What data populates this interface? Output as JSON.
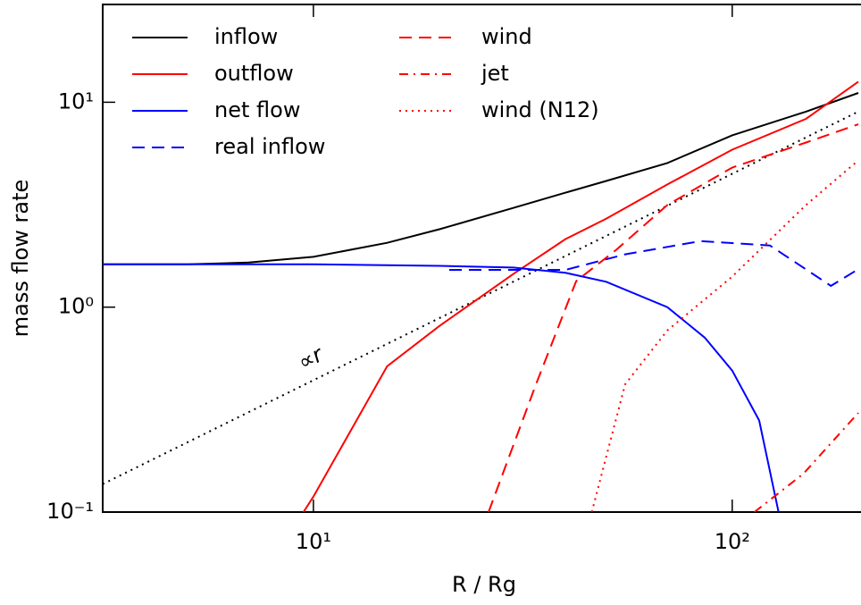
{
  "chart_data": {
    "type": "line",
    "log_x": true,
    "log_y": true,
    "xlabel": "R / Rg",
    "ylabel": "mass flow rate",
    "xlim": [
      3.14,
      203
    ],
    "ylim": [
      0.1,
      30
    ],
    "xticks": [
      {
        "value": 10,
        "label": "10¹"
      },
      {
        "value": 100,
        "label": "10²"
      }
    ],
    "yticks": [
      {
        "value": 0.1,
        "label": "10⁻¹"
      },
      {
        "value": 1,
        "label": "10⁰"
      },
      {
        "value": 10,
        "label": "10¹"
      }
    ],
    "legend": "upper left",
    "series": [
      {
        "name": "inflow",
        "color": "#000000",
        "dash": "solid",
        "x": [
          3.14,
          5,
          7,
          10,
          15,
          20,
          30,
          40,
          50,
          70,
          100,
          150,
          200
        ],
        "values": [
          1.62,
          1.62,
          1.65,
          1.76,
          2.06,
          2.4,
          3.05,
          3.62,
          4.13,
          5.05,
          6.9,
          9.0,
          11.1
        ]
      },
      {
        "name": "outflow",
        "color": "#ff0000",
        "dash": "solid",
        "x": [
          9.47,
          10,
          15,
          20,
          30,
          40,
          50,
          70,
          100,
          150,
          200
        ],
        "values": [
          0.1,
          0.119,
          0.515,
          0.81,
          1.45,
          2.15,
          2.7,
          3.97,
          5.87,
          8.3,
          12.6
        ]
      },
      {
        "name": "net flow",
        "color": "#0000ff",
        "dash": "solid",
        "x": [
          3.14,
          10,
          20,
          30,
          40,
          50,
          70,
          86,
          100,
          116,
          129
        ],
        "values": [
          1.62,
          1.62,
          1.59,
          1.56,
          1.47,
          1.33,
          1.0,
          0.71,
          0.49,
          0.28,
          0.1
        ]
      },
      {
        "name": "real inflow",
        "color": "#0000ff",
        "dash": "dashed",
        "x": [
          21.1,
          40,
          55.5,
          84,
          123,
          172,
          203
        ],
        "values": [
          1.52,
          1.52,
          1.81,
          2.1,
          2.0,
          1.27,
          1.56
        ]
      },
      {
        "name": "wind",
        "color": "#ff0000",
        "dash": "dashed",
        "x": [
          26.2,
          34,
          42.4,
          52.8,
          70,
          100,
          150,
          200
        ],
        "values": [
          0.1,
          0.42,
          1.34,
          1.9,
          3.15,
          4.8,
          6.36,
          7.8
        ]
      },
      {
        "name": "jet",
        "color": "#ff0000",
        "dash": "dashdot",
        "x": [
          113,
          148,
          200
        ],
        "values": [
          0.1,
          0.154,
          0.305
        ]
      },
      {
        "name": "wind (N12)",
        "color": "#ff0000",
        "dash": "dotted",
        "x": [
          46.2,
          55.5,
          70,
          100,
          150,
          200
        ],
        "values": [
          0.1,
          0.42,
          0.77,
          1.41,
          3.15,
          5.2
        ]
      }
    ],
    "reference_line": {
      "label": "∝r",
      "color": "#000000",
      "dash": "dotted",
      "x": [
        3.14,
        200
      ],
      "values": [
        0.137,
        9.0
      ]
    }
  }
}
